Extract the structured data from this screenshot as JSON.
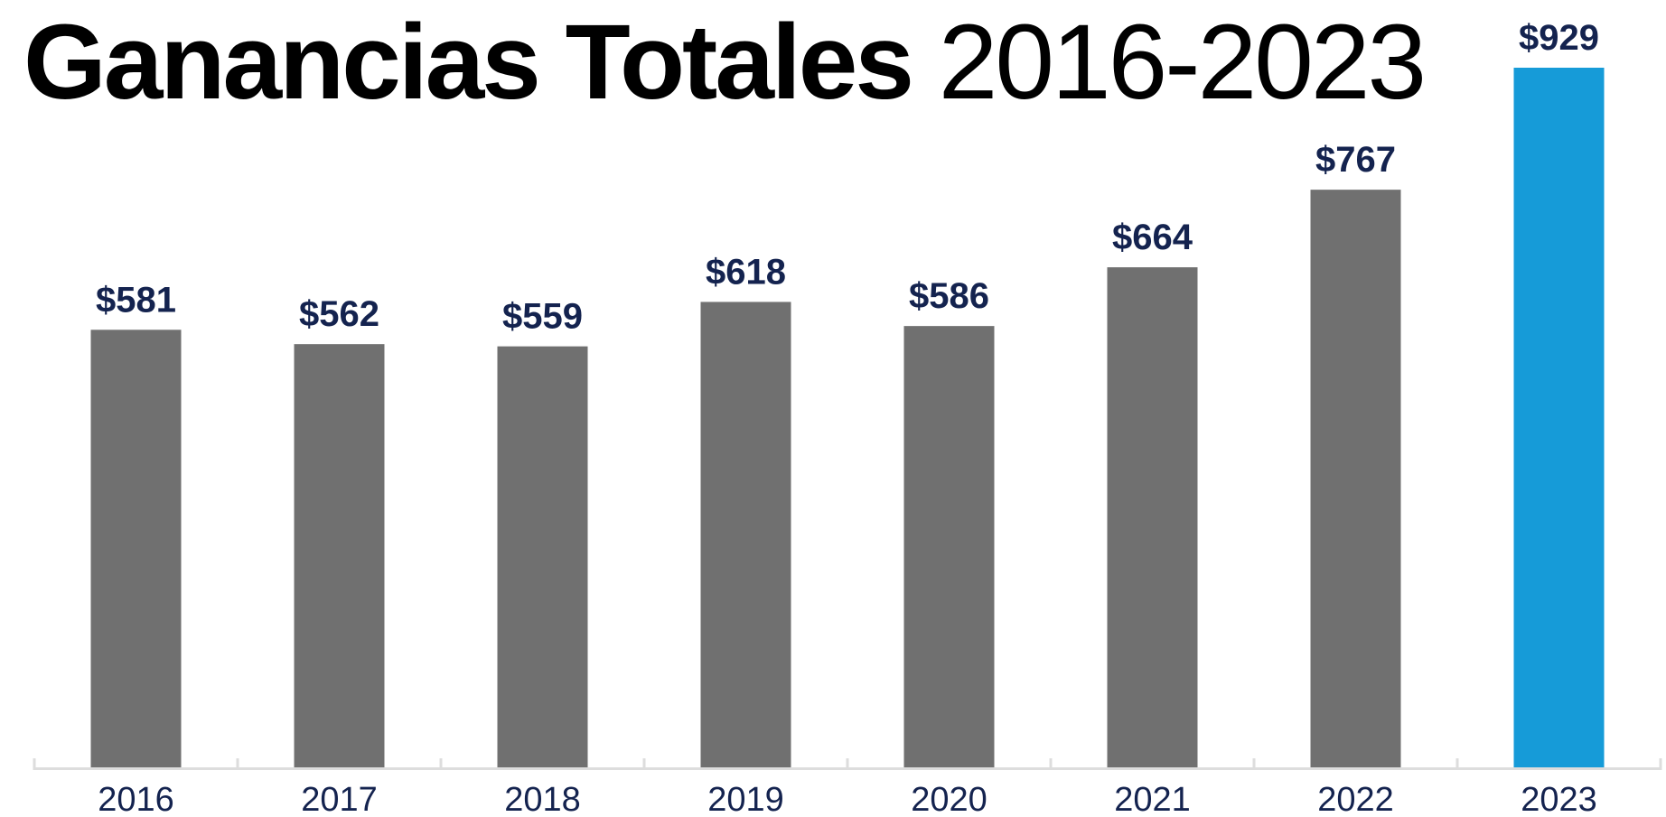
{
  "chart_data": {
    "type": "bar",
    "title_bold": "Ganancias Totales",
    "title_light": "2016-2023",
    "categories": [
      "2016",
      "2017",
      "2018",
      "2019",
      "2020",
      "2021",
      "2022",
      "2023"
    ],
    "values": [
      581,
      562,
      559,
      618,
      586,
      664,
      767,
      929
    ],
    "value_labels": [
      "$581",
      "$562",
      "$559",
      "$618",
      "$586",
      "$664",
      "$767",
      "$929"
    ],
    "xlabel": "",
    "ylabel": "",
    "ylim": [
      0,
      929
    ],
    "grid": false,
    "legend": "none",
    "colors": {
      "bar": "#707070",
      "highlight_bar": "#169bd8",
      "label": "#14234f",
      "axis": "#dddddd"
    },
    "highlight_category": "2023"
  }
}
